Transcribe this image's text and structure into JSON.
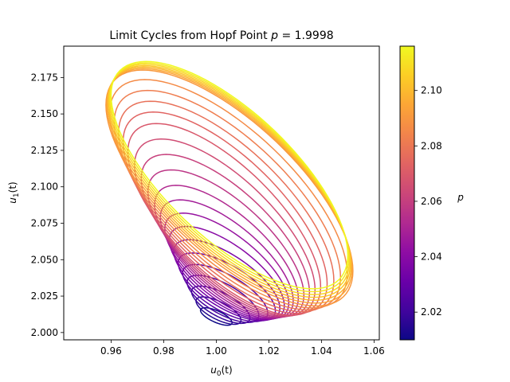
{
  "chart_data": {
    "type": "line",
    "title": "Limit Cycles from Hopf Point p = 1.9998",
    "title_parts": {
      "main": "Limit Cycles from Hopf Point ",
      "var": "p",
      "rest": " = 1.9998"
    },
    "xlabel": {
      "base": "u",
      "sub": "0",
      "rest": "(t)"
    },
    "ylabel": {
      "base": "u",
      "sub": "1",
      "rest": "(t)"
    },
    "xlim": [
      0.942,
      1.062
    ],
    "ylim": [
      1.995,
      2.1965
    ],
    "xticks": [
      0.96,
      0.98,
      1.0,
      1.02,
      1.04,
      1.06
    ],
    "xtick_labels": [
      "0.96",
      "0.98",
      "1.00",
      "1.02",
      "1.04",
      "1.06"
    ],
    "yticks": [
      2.0,
      2.025,
      2.05,
      2.075,
      2.1,
      2.125,
      2.15,
      2.175
    ],
    "ytick_labels": [
      "2.000",
      "2.025",
      "2.050",
      "2.075",
      "2.100",
      "2.125",
      "2.150",
      "2.175"
    ],
    "colormap": "plasma",
    "colorbar": {
      "label": "p",
      "range": [
        2.01,
        2.116
      ],
      "ticks": [
        2.02,
        2.04,
        2.06,
        2.08,
        2.1
      ],
      "tick_labels": [
        "2.02",
        "2.04",
        "2.06",
        "2.08",
        "2.10"
      ]
    },
    "grid": false,
    "cycle_family": {
      "count": 26,
      "p_range": [
        2.01,
        2.116
      ],
      "cycles": [
        {
          "p": 2.01,
          "u0_range": [
            0.994,
            1.006
          ],
          "u1_range": [
            2.005,
            2.017
          ]
        },
        {
          "p": 2.03,
          "u0_range": [
            0.986,
            1.022
          ],
          "u1_range": [
            2.008,
            2.052
          ]
        },
        {
          "p": 2.05,
          "u0_range": [
            0.978,
            1.03
          ],
          "u1_range": [
            2.01,
            2.095
          ]
        },
        {
          "p": 2.07,
          "u0_range": [
            0.966,
            1.04
          ],
          "u1_range": [
            2.012,
            2.145
          ]
        },
        {
          "p": 2.09,
          "u0_range": [
            0.958,
            1.052
          ],
          "u1_range": [
            2.018,
            2.18
          ]
        },
        {
          "p": 2.116,
          "u0_range": [
            0.96,
            1.05
          ],
          "u1_range": [
            2.03,
            2.186
          ]
        }
      ]
    }
  }
}
